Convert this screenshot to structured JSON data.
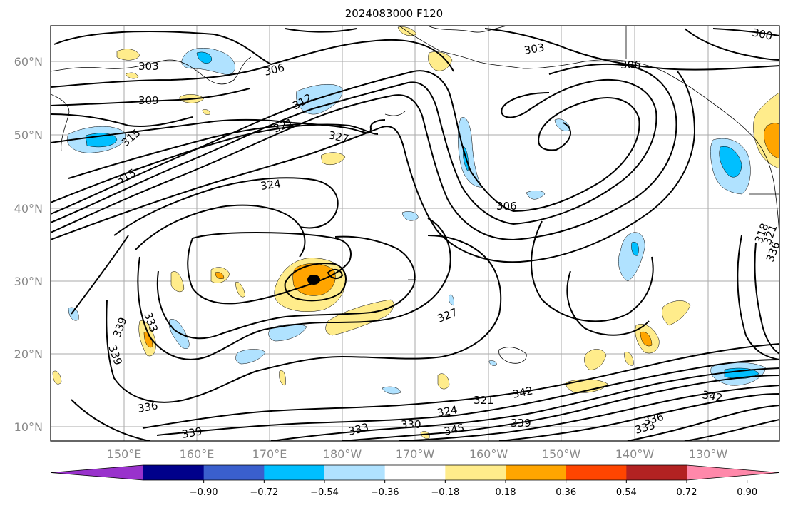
{
  "title": "2024083000 F120",
  "lat_labels": [
    "60°N",
    "50°N",
    "40°N",
    "30°N",
    "20°N",
    "10°N"
  ],
  "lon_labels": [
    "150°E",
    "160°E",
    "170°E",
    "180°W",
    "170°W",
    "160°W",
    "150°W",
    "140°W",
    "130°W"
  ],
  "contour_labels": [
    "300",
    "303",
    "303",
    "306",
    "306",
    "309",
    "312",
    "315",
    "315",
    "321",
    "324",
    "327",
    "327",
    "306",
    "318",
    "321",
    "336",
    "339",
    "339",
    "333",
    "336",
    "339",
    "333",
    "330",
    "324",
    "321",
    "342",
    "345",
    "339",
    "336",
    "333",
    "342"
  ],
  "colorbar": {
    "ticks": [
      "−0.90",
      "−0.72",
      "−0.54",
      "−0.36",
      "−0.18",
      "0.18",
      "0.36",
      "0.54",
      "0.72",
      "0.90"
    ],
    "colors": [
      "#9932cc",
      "#00008b",
      "#3a5fcd",
      "#00bfff",
      "#b0e2ff",
      "#ffffff",
      "#ffec8b",
      "#ffa500",
      "#ff4500",
      "#b22222",
      "#ff88aa"
    ]
  }
}
